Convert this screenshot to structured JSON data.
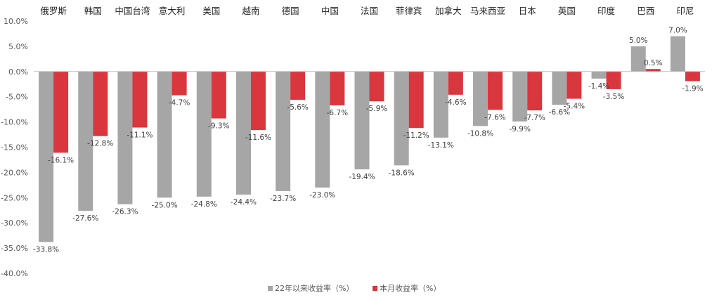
{
  "chart_data": {
    "type": "bar",
    "categories": [
      "俄罗斯",
      "韩国",
      "中国台湾",
      "意大利",
      "美国",
      "越南",
      "德国",
      "中国",
      "法国",
      "菲律宾",
      "加拿大",
      "马来西亚",
      "日本",
      "英国",
      "印度",
      "巴西",
      "印尼"
    ],
    "series": [
      {
        "name": "22年以来收益率（%）",
        "color": "#a6a6a6",
        "values": [
          -33.8,
          -27.6,
          -26.3,
          -25.0,
          -24.8,
          -24.4,
          -23.7,
          -23.0,
          -19.4,
          -18.6,
          -13.1,
          -10.8,
          -9.9,
          -6.6,
          -1.4,
          5.0,
          7.0
        ]
      },
      {
        "name": "本月收益率（%）",
        "color": "#d9363e",
        "values": [
          -16.1,
          -12.8,
          -11.1,
          -4.7,
          -9.3,
          -11.6,
          -5.6,
          -6.7,
          -5.9,
          -11.2,
          -4.6,
          -7.6,
          -7.7,
          -5.4,
          -3.5,
          0.5,
          -1.9
        ]
      }
    ],
    "ylim": [
      -40,
      10
    ],
    "ytick_step": 5,
    "ytick_format": "0.0%",
    "gridlines": false,
    "category_axis_position": "top",
    "legend": "bottom-center",
    "title": "",
    "xlabel": "",
    "ylabel": ""
  }
}
